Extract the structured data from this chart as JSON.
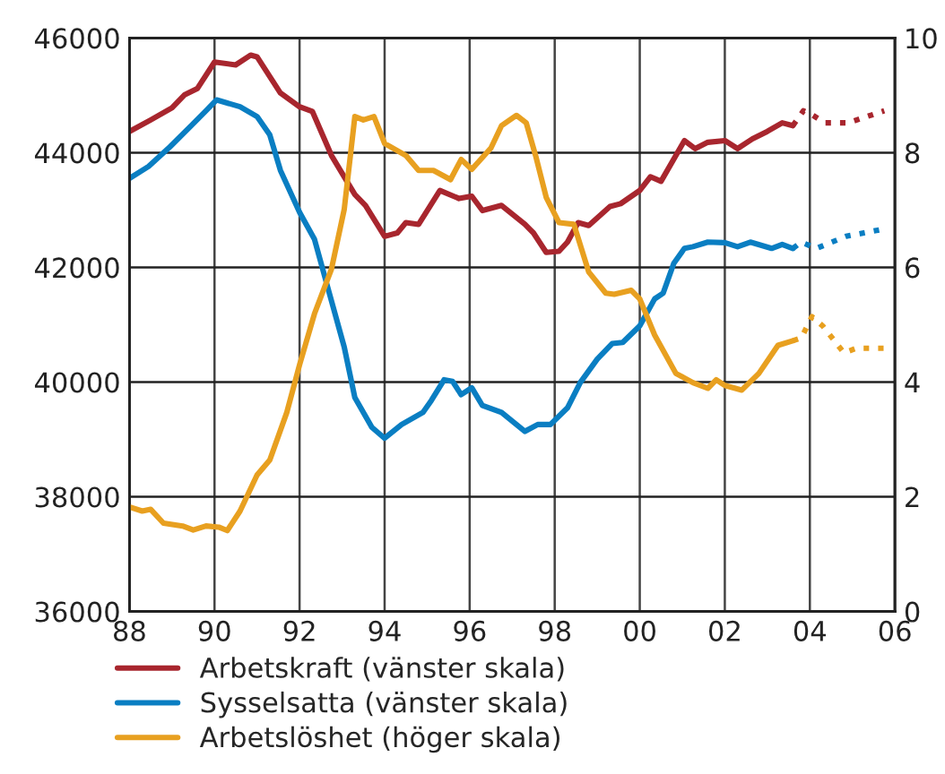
{
  "chart_data": {
    "type": "line",
    "xlim": [
      1988,
      2006
    ],
    "xticks": [
      {
        "value": 1988,
        "label": "88"
      },
      {
        "value": 1990,
        "label": "90"
      },
      {
        "value": 1992,
        "label": "92"
      },
      {
        "value": 1994,
        "label": "94"
      },
      {
        "value": 1996,
        "label": "96"
      },
      {
        "value": 1998,
        "label": "98"
      },
      {
        "value": 2000,
        "label": "00"
      },
      {
        "value": 2002,
        "label": "02"
      },
      {
        "value": 2004,
        "label": "04"
      },
      {
        "value": 2006,
        "label": "06"
      }
    ],
    "ylim": [
      36000,
      46000
    ],
    "yticks": [
      36000,
      38000,
      40000,
      42000,
      44000,
      46000
    ],
    "y2lim": [
      0,
      10
    ],
    "y2ticks": [
      0,
      2,
      4,
      6,
      8,
      10
    ],
    "grid": true,
    "legend": "bottom",
    "marker": "none",
    "series": [
      {
        "name": "Arbetskraft (vänster skala)",
        "color": "#a8262e",
        "line_style": "solid",
        "x": [
          1988.0,
          1988.5,
          1989.0,
          1989.3,
          1989.6,
          1990.0,
          1990.5,
          1990.85,
          1991.0,
          1991.55,
          1992.0,
          1992.3,
          1992.75,
          1993.3,
          1993.55,
          1994.0,
          1994.3,
          1994.5,
          1994.8,
          1995.3,
          1995.75,
          1996.05,
          1996.3,
          1996.75,
          1997.3,
          1997.5,
          1997.8,
          1998.1,
          1998.3,
          1998.55,
          1998.8,
          1999.3,
          1999.55,
          2000.0,
          2000.25,
          2000.5,
          2001.05,
          2001.3,
          2001.6,
          2002.0,
          2002.3,
          2002.65,
          2003.0,
          2003.35,
          2003.6
        ],
        "values": [
          44370,
          44570,
          44780,
          45010,
          45120,
          45580,
          45530,
          45700,
          45670,
          45040,
          44800,
          44720,
          43950,
          43270,
          43080,
          42540,
          42600,
          42780,
          42750,
          43340,
          43200,
          43240,
          42990,
          43080,
          42750,
          42600,
          42260,
          42280,
          42440,
          42780,
          42730,
          43060,
          43110,
          43340,
          43580,
          43500,
          44210,
          44070,
          44180,
          44210,
          44070,
          44240,
          44370,
          44520,
          44470
        ]
      },
      {
        "color": "#a8262e",
        "line_style": "dotted",
        "x": [
          2003.6,
          2003.85,
          2004.05,
          2004.35,
          2004.9,
          2005.75
        ],
        "values": [
          44470,
          44730,
          44660,
          44520,
          44520,
          44730
        ]
      },
      {
        "name": "Sysselsatta (vänster skala)",
        "color": "#0a7ec2",
        "line_style": "solid",
        "x": [
          1988.0,
          1988.45,
          1988.95,
          1989.45,
          1989.8,
          1990.05,
          1990.6,
          1991.0,
          1991.3,
          1991.55,
          1992.0,
          1992.35,
          1992.7,
          1993.05,
          1993.3,
          1993.7,
          1994.0,
          1994.4,
          1994.9,
          1995.1,
          1995.4,
          1995.6,
          1995.8,
          1996.05,
          1996.3,
          1996.75,
          1997.3,
          1997.6,
          1997.9,
          1998.3,
          1998.6,
          1999.0,
          1999.35,
          1999.6,
          2000.0,
          2000.35,
          2000.55,
          2000.8,
          2001.05,
          2001.25,
          2001.6,
          2002.0,
          2002.3,
          2002.6,
          2003.1,
          2003.35,
          2003.6
        ],
        "values": [
          43550,
          43760,
          44100,
          44470,
          44730,
          44920,
          44800,
          44630,
          44310,
          43690,
          42960,
          42490,
          41550,
          40610,
          39730,
          39210,
          39020,
          39260,
          39470,
          39680,
          40040,
          40010,
          39780,
          39900,
          39590,
          39470,
          39140,
          39260,
          39260,
          39550,
          39990,
          40400,
          40670,
          40690,
          40980,
          41450,
          41550,
          42070,
          42330,
          42360,
          42440,
          42430,
          42360,
          42440,
          42330,
          42400,
          42330
        ]
      },
      {
        "color": "#0a7ec2",
        "line_style": "dotted",
        "x": [
          2003.6,
          2003.8,
          2004.15,
          2004.85,
          2005.75
        ],
        "values": [
          42330,
          42440,
          42330,
          42540,
          42670
        ]
      },
      {
        "name": "Arbetslöshet (höger skala)",
        "color": "#e8a020",
        "line_style": "solid",
        "axis": "y2",
        "x": [
          1988.0,
          1988.3,
          1988.5,
          1988.8,
          1989.25,
          1989.5,
          1989.8,
          1990.1,
          1990.3,
          1990.6,
          1991.0,
          1991.3,
          1991.7,
          1992.0,
          1992.35,
          1992.75,
          1993.05,
          1993.3,
          1993.5,
          1993.75,
          1994.0,
          1994.5,
          1994.8,
          1995.15,
          1995.55,
          1995.8,
          1996.05,
          1996.5,
          1996.75,
          1997.1,
          1997.33,
          1997.55,
          1997.8,
          1998.1,
          1998.45,
          1998.8,
          1999.2,
          1999.4,
          1999.8,
          2000.0,
          2000.35,
          2000.85,
          2001.25,
          2001.6,
          2001.8,
          2002.0,
          2002.4,
          2002.8,
          2003.25,
          2003.6
        ],
        "values": [
          1.82,
          1.75,
          1.78,
          1.54,
          1.49,
          1.42,
          1.49,
          1.47,
          1.41,
          1.75,
          2.38,
          2.64,
          3.47,
          4.3,
          5.19,
          5.97,
          7.01,
          8.63,
          8.57,
          8.63,
          8.16,
          7.95,
          7.69,
          7.69,
          7.53,
          7.88,
          7.71,
          8.08,
          8.47,
          8.65,
          8.52,
          7.95,
          7.22,
          6.78,
          6.75,
          5.92,
          5.55,
          5.53,
          5.6,
          5.45,
          4.82,
          4.15,
          3.99,
          3.89,
          4.04,
          3.94,
          3.86,
          4.15,
          4.64,
          4.72
        ]
      },
      {
        "color": "#e8a020",
        "line_style": "dotted",
        "axis": "y2",
        "x": [
          2003.6,
          2003.8,
          2004.05,
          2004.3,
          2004.8,
          2005.1,
          2005.75
        ],
        "values": [
          4.72,
          4.77,
          5.14,
          4.98,
          4.51,
          4.59,
          4.59
        ]
      }
    ]
  }
}
